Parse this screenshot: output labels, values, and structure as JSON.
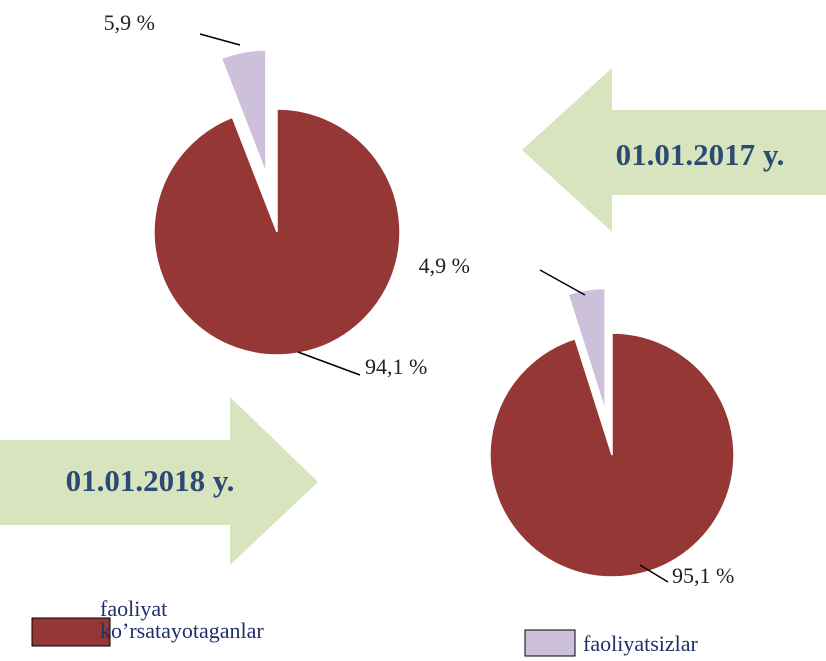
{
  "chart_data": [
    {
      "type": "pie",
      "title": "01.01.2017 y.",
      "categories": [
        "faoliyat ko’rsatayotaganlar",
        "faoliyatsizlar"
      ],
      "values": [
        94.1,
        5.9
      ],
      "value_labels": [
        "94,1 %",
        "5,9 %"
      ],
      "colors": [
        "#953735",
        "#ccc0da"
      ]
    },
    {
      "type": "pie",
      "title": "01.01.2018 y.",
      "categories": [
        "faoliyat ko’rsatayotaganlar",
        "faoliyatsizlar"
      ],
      "values": [
        95.1,
        4.9
      ],
      "value_labels": [
        "95,1 %",
        "4,9 %"
      ],
      "colors": [
        "#953735",
        "#ccc0da"
      ]
    }
  ]
}
